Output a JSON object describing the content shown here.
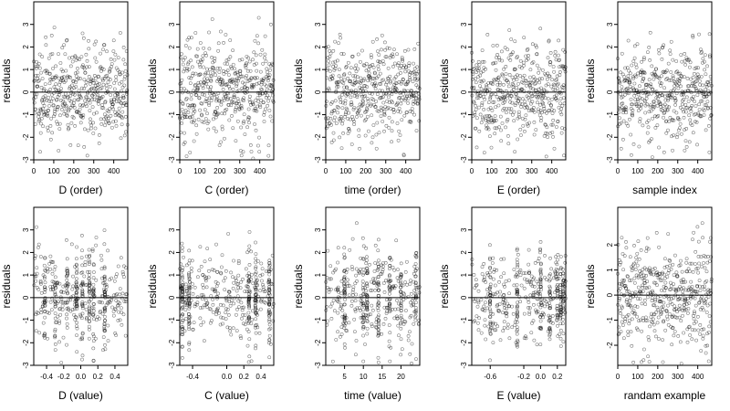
{
  "chart_data": [
    {
      "type": "scatter",
      "xlabel": "D (order)",
      "ylabel": "residuals",
      "xlim": [
        0,
        470
      ],
      "ylim": [
        -3,
        4
      ],
      "x_ticks": [
        0,
        100,
        200,
        300,
        400
      ],
      "x_tick_labels": [
        "0",
        "100",
        "200",
        "300",
        "400"
      ],
      "y_ticks": [
        -3,
        -2,
        -1,
        0,
        1,
        2,
        3
      ],
      "y_tick_labels": [
        "-3",
        "-2",
        "-1",
        "0",
        "1",
        "2",
        "3"
      ],
      "hline": 0,
      "gen": {
        "mode": "order",
        "n": 470,
        "seed": 11
      }
    },
    {
      "type": "scatter",
      "xlabel": "C (order)",
      "ylabel": "residuals",
      "xlim": [
        0,
        470
      ],
      "ylim": [
        -3,
        4
      ],
      "x_ticks": [
        0,
        100,
        200,
        300,
        400
      ],
      "x_tick_labels": [
        "0",
        "100",
        "200",
        "300",
        "400"
      ],
      "y_ticks": [
        -3,
        -2,
        -1,
        0,
        1,
        2,
        3
      ],
      "y_tick_labels": [
        "-3",
        "-2",
        "-1",
        "0",
        "1",
        "2",
        "3"
      ],
      "hline": 0,
      "gen": {
        "mode": "order",
        "n": 470,
        "seed": 23
      }
    },
    {
      "type": "scatter",
      "xlabel": "time (order)",
      "ylabel": "residuals",
      "xlim": [
        0,
        470
      ],
      "ylim": [
        -3,
        4
      ],
      "x_ticks": [
        0,
        100,
        200,
        300,
        400
      ],
      "x_tick_labels": [
        "0",
        "100",
        "200",
        "300",
        "400"
      ],
      "y_ticks": [
        -3,
        -2,
        -1,
        0,
        1,
        2,
        3
      ],
      "y_tick_labels": [
        "-3",
        "-2",
        "-1",
        "0",
        "1",
        "2",
        "3"
      ],
      "hline": 0,
      "gen": {
        "mode": "order",
        "n": 470,
        "seed": 37
      }
    },
    {
      "type": "scatter",
      "xlabel": "E (order)",
      "ylabel": "residuals",
      "xlim": [
        0,
        470
      ],
      "ylim": [
        -3,
        4
      ],
      "x_ticks": [
        0,
        100,
        200,
        300,
        400
      ],
      "x_tick_labels": [
        "0",
        "100",
        "200",
        "300",
        "400"
      ],
      "y_ticks": [
        -3,
        -2,
        -1,
        0,
        1,
        2,
        3
      ],
      "y_tick_labels": [
        "-3",
        "-2",
        "-1",
        "0",
        "1",
        "2",
        "3"
      ],
      "hline": 0,
      "gen": {
        "mode": "order",
        "n": 470,
        "seed": 41
      }
    },
    {
      "type": "scatter",
      "xlabel": "sample index",
      "ylabel": "residuals",
      "xlim": [
        0,
        470
      ],
      "ylim": [
        -3,
        4
      ],
      "x_ticks": [
        0,
        100,
        200,
        300,
        400
      ],
      "x_tick_labels": [
        "0",
        "100",
        "200",
        "300",
        "400"
      ],
      "y_ticks": [
        -3,
        -2,
        -1,
        0,
        1,
        2,
        3
      ],
      "y_tick_labels": [
        "-3",
        "-2",
        "-1",
        "0",
        "1",
        "2",
        "3"
      ],
      "hline": 0,
      "gen": {
        "mode": "order",
        "n": 470,
        "seed": 53
      }
    },
    {
      "type": "scatter",
      "xlabel": "D (value)",
      "ylabel": "residuals",
      "xlim": [
        -0.55,
        0.55
      ],
      "ylim": [
        -3,
        4
      ],
      "x_ticks": [
        -0.4,
        -0.2,
        0.0,
        0.2,
        0.4
      ],
      "x_tick_labels": [
        "-0.4",
        "-0.2",
        "0.0",
        "0.2",
        "0.4"
      ],
      "y_ticks": [
        -3,
        -2,
        -1,
        0,
        1,
        2,
        3
      ],
      "y_tick_labels": [
        "-3",
        "-2",
        "-1",
        "0",
        "1",
        "2",
        "3"
      ],
      "hline": 0,
      "gen": {
        "mode": "value",
        "n": 470,
        "seed": 61,
        "x_min": -0.55,
        "x_max": 0.55,
        "columns": [
          -0.42,
          -0.3,
          -0.16,
          -0.05,
          0.02,
          0.1,
          0.15,
          0.28
        ]
      }
    },
    {
      "type": "scatter",
      "xlabel": "C (value)",
      "ylabel": "residuals",
      "xlim": [
        -0.55,
        0.55
      ],
      "ylim": [
        -3,
        4
      ],
      "x_ticks": [
        -0.4,
        0.0,
        0.2,
        0.4
      ],
      "x_tick_labels": [
        "-0.4",
        "0.0",
        "0.2",
        "0.4"
      ],
      "y_ticks": [
        -3,
        -2,
        -1,
        0,
        1,
        2,
        3
      ],
      "y_tick_labels": [
        "-3",
        "-2",
        "-1",
        "0",
        "1",
        "2",
        "3"
      ],
      "hline": 0,
      "gen": {
        "mode": "value",
        "n": 470,
        "seed": 71,
        "x_min": -0.55,
        "x_max": 0.55,
        "columns": [
          -0.52,
          -0.44,
          0.26,
          0.34,
          0.5
        ]
      }
    },
    {
      "type": "scatter",
      "xlabel": "time (value)",
      "ylabel": "residuals",
      "xlim": [
        0,
        25
      ],
      "ylim": [
        -3,
        4
      ],
      "x_ticks": [
        5,
        10,
        15,
        20
      ],
      "x_tick_labels": [
        "5",
        "10",
        "15",
        "20"
      ],
      "y_ticks": [
        -3,
        -2,
        -1,
        0,
        1,
        2,
        3
      ],
      "y_tick_labels": [
        "-3",
        "-2",
        "-1",
        "0",
        "1",
        "2",
        "3"
      ],
      "hline": 0,
      "gen": {
        "mode": "value",
        "n": 470,
        "seed": 83,
        "x_min": 0,
        "x_max": 25,
        "columns": [
          5,
          10,
          11,
          14,
          17,
          20,
          24
        ]
      }
    },
    {
      "type": "scatter",
      "xlabel": "E (value)",
      "ylabel": "residuals",
      "xlim": [
        -0.82,
        0.3
      ],
      "ylim": [
        -3,
        4
      ],
      "x_ticks": [
        -0.6,
        -0.2,
        0.0,
        0.2
      ],
      "x_tick_labels": [
        "-0.6",
        "-0.2",
        "0.0",
        "0.2"
      ],
      "y_ticks": [
        -3,
        -2,
        -1,
        0,
        1,
        2,
        3
      ],
      "y_tick_labels": [
        "-3",
        "-2",
        "-1",
        "0",
        "1",
        "2",
        "3"
      ],
      "hline": 0,
      "gen": {
        "mode": "value",
        "n": 470,
        "seed": 97,
        "x_min": -0.82,
        "x_max": 0.3,
        "columns": [
          -0.6,
          -0.28,
          0.0,
          0.11,
          0.2,
          0.24,
          0.27
        ]
      }
    },
    {
      "type": "scatter",
      "xlabel": "randam example",
      "ylabel": "residuals",
      "xlim": [
        0,
        470
      ],
      "ylim": [
        -2.8,
        3.5
      ],
      "x_ticks": [
        0,
        100,
        200,
        300,
        400
      ],
      "x_tick_labels": [
        "0",
        "100",
        "200",
        "300",
        "400"
      ],
      "y_ticks": [
        -2,
        -1,
        0,
        1,
        2
      ],
      "y_tick_labels": [
        "-2",
        "-1",
        "0",
        "1",
        "2"
      ],
      "hline": 0,
      "gen": {
        "mode": "order",
        "n": 470,
        "seed": 109
      }
    }
  ]
}
